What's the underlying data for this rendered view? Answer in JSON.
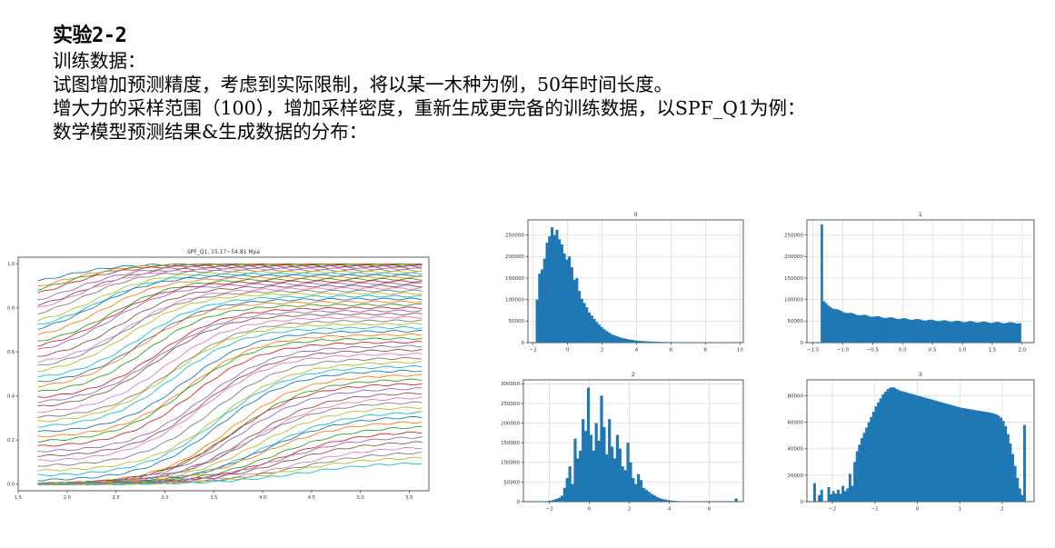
{
  "slide": {
    "title": "实验2-2",
    "lines": [
      "训练数据：",
      "试图增加预测精度，考虑到实际限制，将以某一木种为例，50年时间长度。",
      "增大力的采样范围（100），增加采样密度，重新生成更完备的训练数据，以SPF_Q1为例：",
      "数学模型预测结果&生成数据的分布："
    ]
  },
  "chart_data": [
    {
      "type": "line",
      "title": "SPF_Q1, 15.17~54.81 Mpa",
      "xlim": [
        1.5,
        5.7
      ],
      "ylim": [
        -0.03,
        1.03
      ],
      "x_ticks": [
        1.5,
        2.0,
        2.5,
        3.0,
        3.5,
        4.0,
        4.5,
        5.0,
        5.5
      ],
      "x_tick_labels": [
        "1.5",
        "2.0",
        "2.5",
        "3.0",
        "3.5",
        "4.0",
        "4.5",
        "5.0",
        "5.5"
      ],
      "y_ticks": [
        0.0,
        0.2,
        0.4,
        0.6,
        0.8,
        1.0
      ],
      "y_tick_labels": [
        "0.0",
        "0.2",
        "0.4",
        "0.6",
        "0.8",
        "1.0"
      ],
      "x_range": [
        1.7,
        5.63
      ],
      "series_count": 60,
      "series_model": "logistic: y = y0 + (ymax - y0) / (1 + exp(-k (x - x0)))",
      "series_params": {
        "x0_range": [
          1.9,
          4.4
        ],
        "ymax_range": [
          1.0,
          0.1
        ],
        "y0_range": [
          0.88,
          0.0
        ],
        "k_range": [
          3.2,
          2.4
        ]
      },
      "colors": [
        "#1f77b4",
        "#ff7f0e",
        "#2ca02c",
        "#d62728",
        "#9467bd",
        "#8c564b",
        "#e377c2",
        "#7f7f7f",
        "#bcbd22",
        "#17becf"
      ],
      "grid": false
    },
    {
      "type": "bar",
      "title": "0",
      "xlim": [
        -2.3,
        10.2
      ],
      "ylim": [
        0,
        285000
      ],
      "x_ticks": [
        -2,
        0,
        2,
        4,
        6,
        8,
        10
      ],
      "x_tick_labels": [
        "−2",
        "0",
        "2",
        "4",
        "6",
        "8",
        "10"
      ],
      "y_ticks": [
        0,
        50000,
        100000,
        150000,
        200000,
        250000
      ],
      "y_tick_labels": [
        "0",
        "50000",
        "100000",
        "150000",
        "200000",
        "250000"
      ],
      "bin_range": [
        -1.85,
        9.7
      ],
      "values": [
        100000,
        160000,
        170000,
        195000,
        232000,
        247000,
        268000,
        250000,
        262000,
        240000,
        228000,
        207000,
        193000,
        200000,
        175000,
        146000,
        150000,
        120000,
        102000,
        92000,
        82000,
        70000,
        63000,
        55000,
        48000,
        42000,
        36000,
        31000,
        27000,
        23000,
        20000,
        17000,
        15000,
        13000,
        11000,
        10000,
        8500,
        7500,
        6500,
        5600,
        4900,
        4300,
        3800,
        3400,
        3000,
        2700,
        2400,
        2200,
        2000,
        1800,
        1600,
        1500,
        1400,
        1300,
        1200,
        1100,
        1000,
        950,
        900,
        850,
        800,
        750,
        700,
        650,
        600,
        550,
        500,
        470,
        440,
        410,
        380,
        350,
        320,
        300,
        280,
        260,
        240,
        220,
        200,
        180
      ],
      "color": "#1f77b4",
      "grid": true
    },
    {
      "type": "bar",
      "title": "1",
      "xlim": [
        -1.6,
        2.2
      ],
      "ylim": [
        0,
        285000
      ],
      "x_ticks": [
        -1.5,
        -1.0,
        -0.5,
        0.0,
        0.5,
        1.0,
        1.5,
        2.0
      ],
      "x_tick_labels": [
        "−1.5",
        "−1.0",
        "−0.5",
        "0.0",
        "0.5",
        "1.0",
        "1.5",
        "2.0"
      ],
      "y_ticks": [
        0,
        50000,
        100000,
        150000,
        200000,
        250000
      ],
      "y_tick_labels": [
        "0",
        "50000",
        "100000",
        "150000",
        "200000",
        "250000"
      ],
      "bin_range": [
        -1.37,
        1.98
      ],
      "first_bin_value": 275000,
      "values_model": "decay from 100000 toward 42000 over remaining bins",
      "color": "#1f77b4",
      "grid": true
    },
    {
      "type": "bar",
      "title": "2",
      "xlim": [
        -3.3,
        7.7
      ],
      "ylim": [
        0,
        310000
      ],
      "x_ticks": [
        -2,
        0,
        2,
        4,
        6
      ],
      "x_tick_labels": [
        "−2",
        "0",
        "2",
        "4",
        "6"
      ],
      "y_ticks": [
        0,
        50000,
        100000,
        150000,
        200000,
        250000,
        300000
      ],
      "y_tick_labels": [
        "0",
        "50000",
        "100000",
        "150000",
        "200000",
        "250000",
        "300000"
      ],
      "bin_range": [
        -2.5,
        7.4
      ],
      "values": [
        500,
        800,
        1200,
        2000,
        3000,
        4500,
        7000,
        10000,
        15000,
        35000,
        60000,
        90000,
        45000,
        160000,
        110000,
        130000,
        210000,
        180000,
        290000,
        170000,
        130000,
        200000,
        155000,
        270000,
        190000,
        120000,
        210000,
        140000,
        110000,
        170000,
        135000,
        90000,
        80000,
        150000,
        100000,
        60000,
        45000,
        70000,
        55000,
        35000,
        30000,
        25000,
        20000,
        16000,
        12000,
        9000,
        7000,
        5500,
        4000,
        3200,
        2500,
        2000,
        1500,
        1100,
        900,
        700,
        600,
        500,
        400,
        300,
        250,
        200,
        150,
        120,
        100,
        90,
        80,
        70,
        60,
        50,
        40,
        30,
        20,
        10,
        8000
      ],
      "color": "#1f77b4",
      "grid": true
    },
    {
      "type": "bar",
      "title": "3",
      "xlim": [
        -2.6,
        2.75
      ],
      "ylim": [
        0,
        92000
      ],
      "x_ticks": [
        -2,
        -1,
        0,
        1,
        2
      ],
      "x_tick_labels": [
        "−2",
        "−1",
        "0",
        "1",
        "2"
      ],
      "y_ticks": [
        0,
        20000,
        40000,
        60000,
        80000
      ],
      "y_tick_labels": [
        "0",
        "20000",
        "40000",
        "60000",
        "80000"
      ],
      "bin_range": [
        -2.45,
        2.55
      ],
      "values": [
        14000,
        0,
        5000,
        9000,
        0,
        0,
        11000,
        5500,
        8000,
        6000,
        9000,
        6000,
        12000,
        8000,
        10000,
        21000,
        12000,
        30000,
        38000,
        43000,
        48000,
        52000,
        56000,
        60000,
        64000,
        68000,
        72000,
        75000,
        78000,
        81000,
        83000,
        85000,
        86000,
        86500,
        86000,
        85000,
        84000,
        83500,
        83000,
        82500,
        82000,
        81500,
        81000,
        80500,
        80000,
        79500,
        79000,
        78500,
        78000,
        77500,
        77000,
        76500,
        76000,
        75500,
        75000,
        74500,
        74000,
        73500,
        73000,
        72500,
        72000,
        71500,
        71000,
        70700,
        70400,
        70100,
        69800,
        69500,
        69200,
        68900,
        68600,
        68300,
        68000,
        67700,
        67400,
        67000,
        66500,
        66000,
        65000,
        63500,
        61000,
        57000,
        51000,
        44000,
        36000,
        27000,
        18000,
        10000,
        5000,
        58000
      ],
      "color": "#1f77b4",
      "grid": true
    }
  ]
}
